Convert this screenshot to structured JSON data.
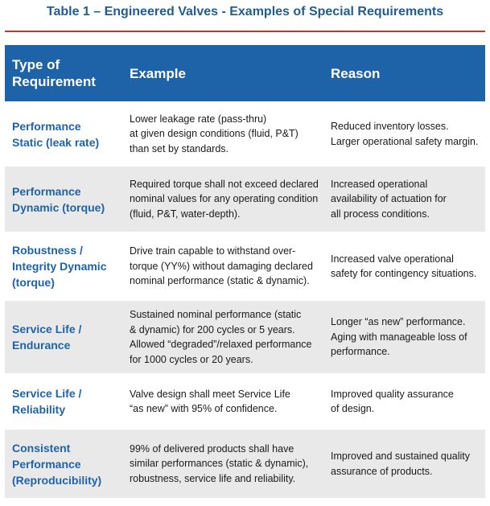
{
  "title": "Table 1 – Engineered Valves - Examples of Special Requirements",
  "colors": {
    "title": "#1f5d93",
    "rule": "#c0392b",
    "header_bg": "#1e63a8",
    "stripe": "#e9e9e9"
  },
  "headers": {
    "type": [
      "Type of",
      "Requirement"
    ],
    "example": "Example",
    "reason": "Reason"
  },
  "rows": [
    {
      "type": [
        "Performance",
        "Static (leak rate)"
      ],
      "example": [
        "Lower leakage rate (pass-thru)",
        "at given design conditions (fluid, P&T)",
        "than set by standards."
      ],
      "reason": [
        "Reduced inventory losses.",
        "Larger operational safety margin."
      ]
    },
    {
      "type": [
        "Performance",
        "Dynamic (torque)"
      ],
      "example": [
        "Required torque shall not exceed declared",
        "nominal values for any operating condition",
        "(fluid, P&T, water-depth)."
      ],
      "reason": [
        "Increased operational",
        "availability of actuation for",
        "all process conditions."
      ]
    },
    {
      "type": [
        "Robustness /",
        "Integrity Dynamic",
        "(torque)"
      ],
      "example": [
        "Drive train capable to withstand over-",
        "torque (YY%) without damaging declared",
        "nominal performance (static & dynamic)."
      ],
      "reason": [
        "Increased valve operational",
        "safety for contingency situations."
      ]
    },
    {
      "type": [
        "Service Life /",
        "Endurance"
      ],
      "example": [
        "Sustained nominal performance (static",
        "& dynamic) for 200 cycles or 5 years.",
        "Allowed “degraded”/relaxed performance",
        "for 1000 cycles or 20 years."
      ],
      "reason": [
        "Longer “as new” performance.",
        "Aging with manageable loss of",
        "performance."
      ]
    },
    {
      "type": [
        "Service Life /",
        "Reliability"
      ],
      "example": [
        "Valve design shall meet Service Life",
        "“as new” with 95% of confidence."
      ],
      "reason": [
        "Improved quality assurance",
        "of design."
      ]
    },
    {
      "type": [
        "Consistent",
        "Performance",
        "(Reproducibility)"
      ],
      "example": [
        "99% of delivered products shall have",
        "similar performances (static & dynamic),",
        "robustness, service life and reliability."
      ],
      "reason": [
        "Improved and sustained quality",
        "assurance of products."
      ]
    }
  ]
}
